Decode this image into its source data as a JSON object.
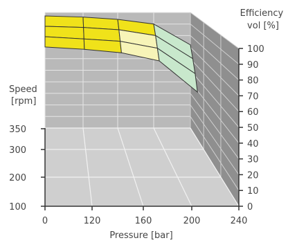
{
  "chart_data": {
    "type": "surface-3d",
    "title": "",
    "xlabel": "Pressure [bar]",
    "ylabel": "Speed\n[rpm]",
    "zlabel": "Efficiency\nvol [%]",
    "x_ticks": [
      "0",
      "120",
      "160",
      "200",
      "240"
    ],
    "y_ticks": [
      "100",
      "200",
      "300",
      "350"
    ],
    "z_ticks": [
      "0",
      "10",
      "20",
      "30",
      "40",
      "50",
      "60",
      "70",
      "80",
      "90",
      "100"
    ],
    "zlim": [
      0,
      100
    ],
    "series": [
      {
        "x": [
          0,
          120,
          160,
          200,
          240
        ],
        "y": 350,
        "z": [
          97,
          96,
          94,
          90,
          72
        ]
      },
      {
        "x": [
          0,
          120,
          160,
          200,
          240
        ],
        "y": 300,
        "z": [
          96,
          95,
          93,
          88,
          68
        ]
      },
      {
        "x": [
          0,
          120,
          160,
          200,
          240
        ],
        "y": 200,
        "z": [
          95,
          93,
          91,
          85,
          63
        ]
      },
      {
        "x": [
          0,
          120,
          160,
          200,
          240
        ],
        "y": 100,
        "z": [
          94,
          92,
          89,
          82,
          55
        ]
      }
    ],
    "band_colors": {
      "above_90": "#f0e21a",
      "85_to_90": "#f7f4b8",
      "below_85": "#c8e8cc"
    },
    "grid": true
  }
}
